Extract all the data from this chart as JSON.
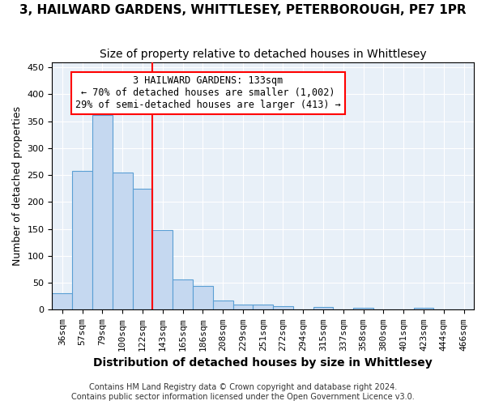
{
  "title": "3, HAILWARD GARDENS, WHITTLESEY, PETERBOROUGH, PE7 1PR",
  "subtitle": "Size of property relative to detached houses in Whittlesey",
  "xlabel": "Distribution of detached houses by size in Whittlesey",
  "ylabel": "Number of detached properties",
  "bin_labels": [
    "36sqm",
    "57sqm",
    "79sqm",
    "100sqm",
    "122sqm",
    "143sqm",
    "165sqm",
    "186sqm",
    "208sqm",
    "229sqm",
    "251sqm",
    "272sqm",
    "294sqm",
    "315sqm",
    "337sqm",
    "358sqm",
    "380sqm",
    "401sqm",
    "423sqm",
    "444sqm",
    "466sqm"
  ],
  "bar_heights": [
    30,
    258,
    362,
    255,
    224,
    148,
    57,
    44,
    17,
    10,
    10,
    7,
    0,
    5,
    0,
    3,
    0,
    0,
    3,
    0,
    0
  ],
  "bar_color": "#c5d8f0",
  "bar_edge_color": "#5a9fd4",
  "annotation_text": "3 HAILWARD GARDENS: 133sqm\n← 70% of detached houses are smaller (1,002)\n29% of semi-detached houses are larger (413) →",
  "annotation_box_color": "white",
  "annotation_box_edge_color": "red",
  "vline_color": "red",
  "vline_x": 4.47,
  "ylim": [
    0,
    460
  ],
  "yticks": [
    0,
    50,
    100,
    150,
    200,
    250,
    300,
    350,
    400,
    450
  ],
  "footnote": "Contains HM Land Registry data © Crown copyright and database right 2024.\nContains public sector information licensed under the Open Government Licence v3.0.",
  "plot_background_color": "#e8f0f8",
  "title_fontsize": 11,
  "subtitle_fontsize": 10,
  "ylabel_fontsize": 9,
  "xlabel_fontsize": 10,
  "tick_fontsize": 8,
  "annotation_fontsize": 8.5,
  "footnote_fontsize": 7
}
